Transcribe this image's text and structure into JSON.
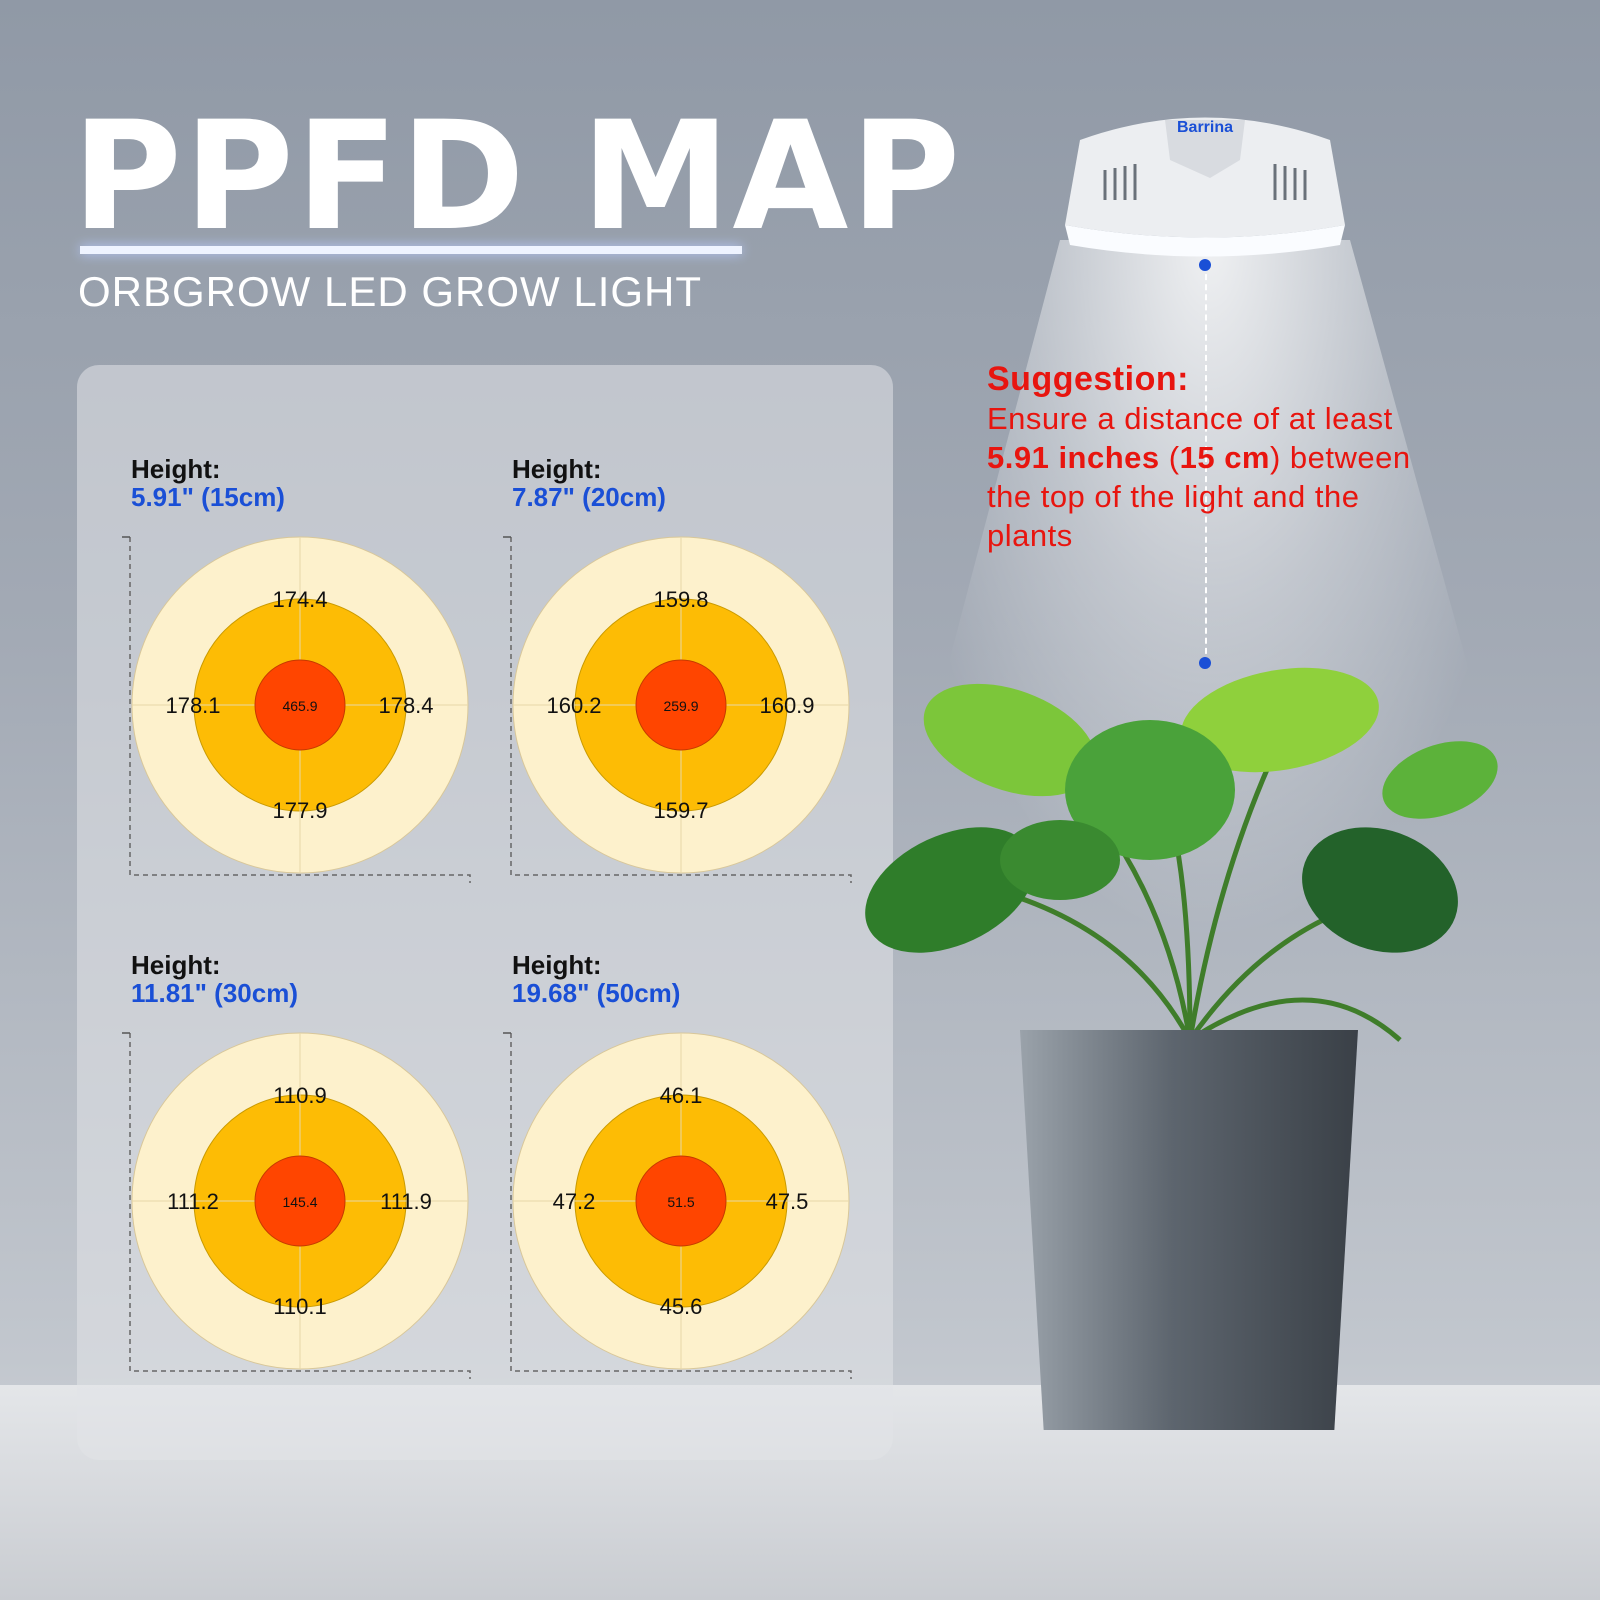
{
  "title": "PPFD MAP",
  "subtitle": "ORBGROW LED GROW LIGHT",
  "lamp_brand": "Barrina",
  "suggestion": {
    "title": "Suggestion:",
    "line1": "Ensure a distance of at least",
    "dist_in": "5.91 inches",
    "paren_open": " (",
    "dist_cm": "15 cm",
    "paren_close": ") between",
    "line3": "the top of the light and the",
    "line4": "plants"
  },
  "colors": {
    "outer": "#fdf1cc",
    "middle": "#fdbc05",
    "center": "#ff4500",
    "height_value": "#1a4fd6",
    "suggestion": "#e8150f"
  },
  "maps": [
    {
      "label": "Height:",
      "height": "5.91\" (15cm)",
      "center": "465.9",
      "top": "174.4",
      "left": "178.1",
      "right": "178.4",
      "bottom": "177.9"
    },
    {
      "label": "Height:",
      "height": "7.87\" (20cm)",
      "center": "259.9",
      "top": "159.8",
      "left": "160.2",
      "right": "160.9",
      "bottom": "159.7"
    },
    {
      "label": "Height:",
      "height": "11.81\" (30cm)",
      "center": "145.4",
      "top": "110.9",
      "left": "111.2",
      "right": "111.9",
      "bottom": "110.1"
    },
    {
      "label": "Height:",
      "height": "19.68\" (50cm)",
      "center": "51.5",
      "top": "46.1",
      "left": "47.2",
      "right": "47.5",
      "bottom": "45.6"
    }
  ]
}
